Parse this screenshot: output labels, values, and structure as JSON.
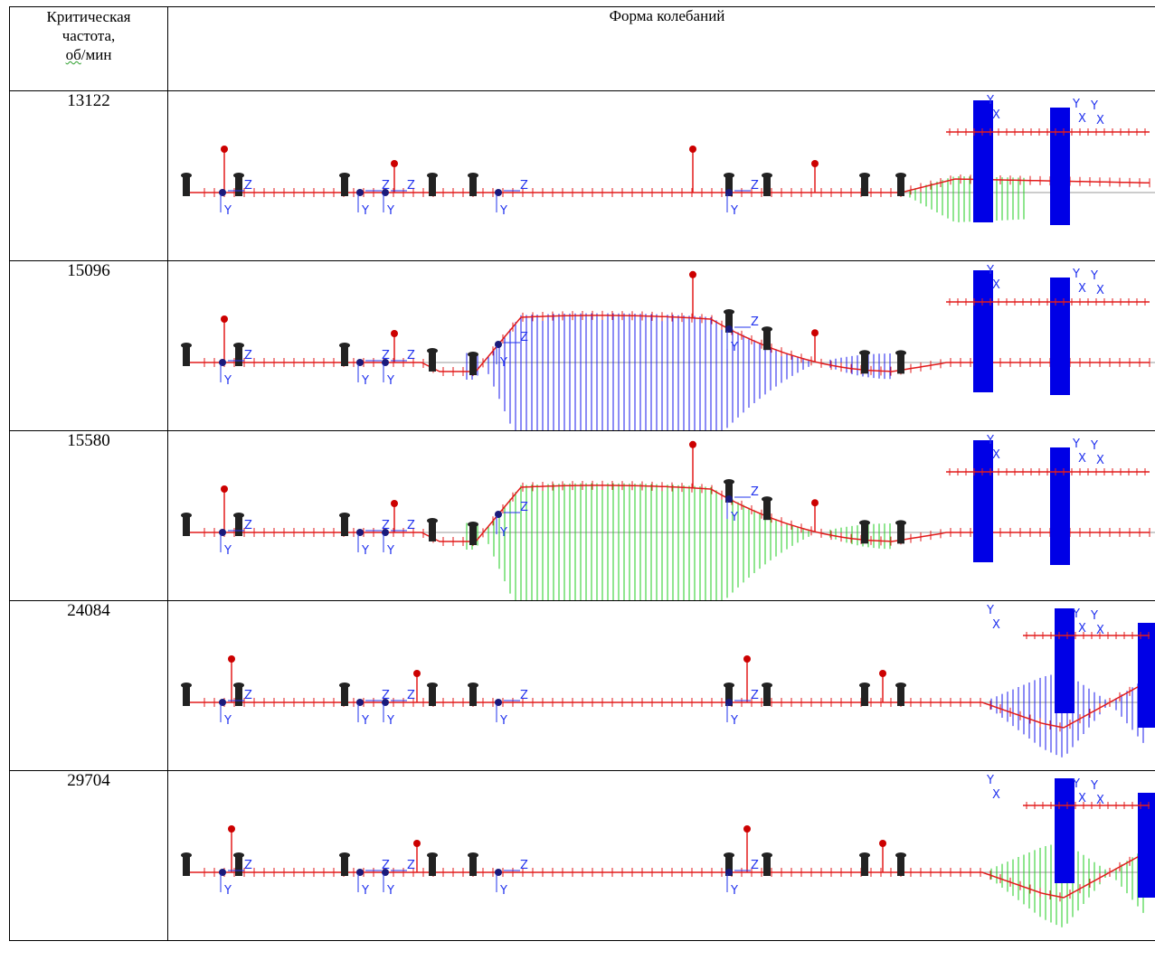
{
  "header": {
    "freq_line1": "Критическая",
    "freq_line2": "частота,",
    "freq_line3_prefix": "",
    "freq_unit_ob": "об",
    "freq_unit_rest": "/мин",
    "shape": "Форма колебаний"
  },
  "rows": [
    {
      "freq": "13122",
      "mode": "mode1",
      "wave_color": "#22cc22"
    },
    {
      "freq": "15096",
      "mode": "mode2",
      "wave_color": "#1a1aee"
    },
    {
      "freq": "15580",
      "mode": "mode2",
      "wave_color": "#22cc22"
    },
    {
      "freq": "24084",
      "mode": "mode3",
      "wave_color": "#1a1aee"
    },
    {
      "freq": "29704",
      "mode": "mode3",
      "wave_color": "#22cc22"
    }
  ],
  "labels": {
    "y": "Y",
    "z": "Z",
    "x": "X"
  },
  "colors": {
    "shaft": "#e21b1b",
    "disk": "#0000e6",
    "node": "#1a1a7a",
    "support": "#222222",
    "axis": "#999999"
  }
}
